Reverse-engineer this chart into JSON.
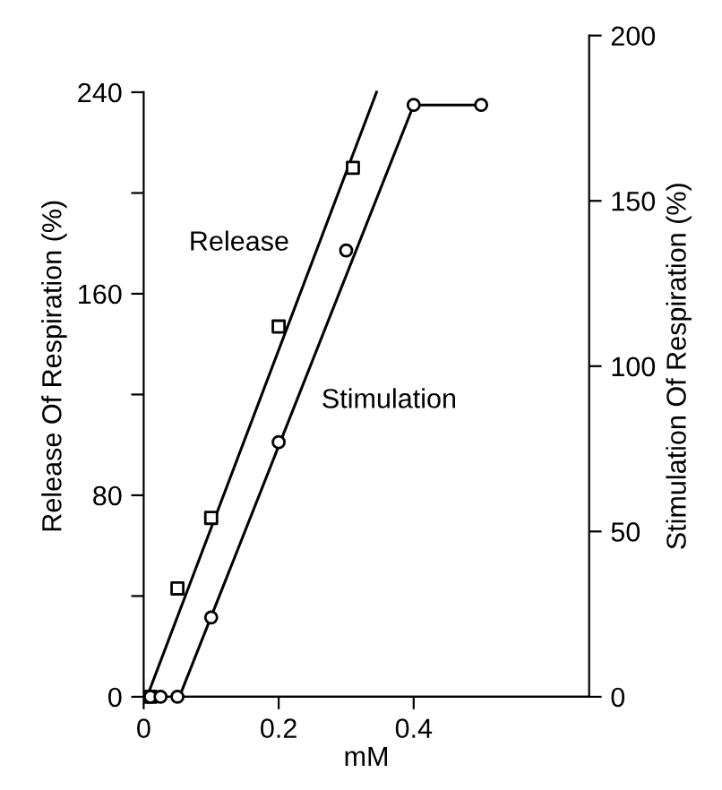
{
  "chart_data": {
    "type": "scatter",
    "xlabel": "mM",
    "ylabel": "Release Of Respiration (%)",
    "y2label": "Stimulation Of Respiration (%)",
    "xlim": [
      0,
      0.66
    ],
    "xticks": [
      0,
      0.2,
      0.4
    ],
    "ylim": [
      0,
      262.5
    ],
    "yticks": [
      0,
      {
        "value": 40,
        "label": null
      },
      80,
      {
        "value": 120,
        "label": null
      },
      160,
      {
        "value": 200,
        "label": null
      },
      240
    ],
    "y2lim": [
      0,
      200
    ],
    "y2ticks": [
      0,
      50,
      100,
      150,
      200
    ],
    "grid": false,
    "legend": false,
    "series": [
      {
        "name": "Release",
        "type": "line",
        "x": [
          0.005,
          0.345
        ],
        "values": [
          0,
          240
        ],
        "color": "#000000",
        "marker": "none"
      },
      {
        "x": [
          0.01,
          0.05,
          0.1,
          0.2,
          0.31
        ],
        "values": [
          0,
          43,
          71,
          147,
          210
        ],
        "color": "#000000",
        "marker": "square"
      },
      {
        "name": "Stimulation",
        "type": "line",
        "axis": "y2",
        "x": [
          0.053,
          0.4,
          0.5
        ],
        "values": [
          0,
          179,
          179
        ],
        "color": "#000000",
        "marker": "none"
      },
      {
        "axis": "y2",
        "x": [
          0.01,
          0.025,
          0.05,
          0.1,
          0.2,
          0.3,
          0.4,
          0.5
        ],
        "values": [
          0,
          0,
          0,
          24,
          77,
          135,
          179,
          179
        ],
        "color": "#000000",
        "marker": "circle"
      }
    ]
  }
}
